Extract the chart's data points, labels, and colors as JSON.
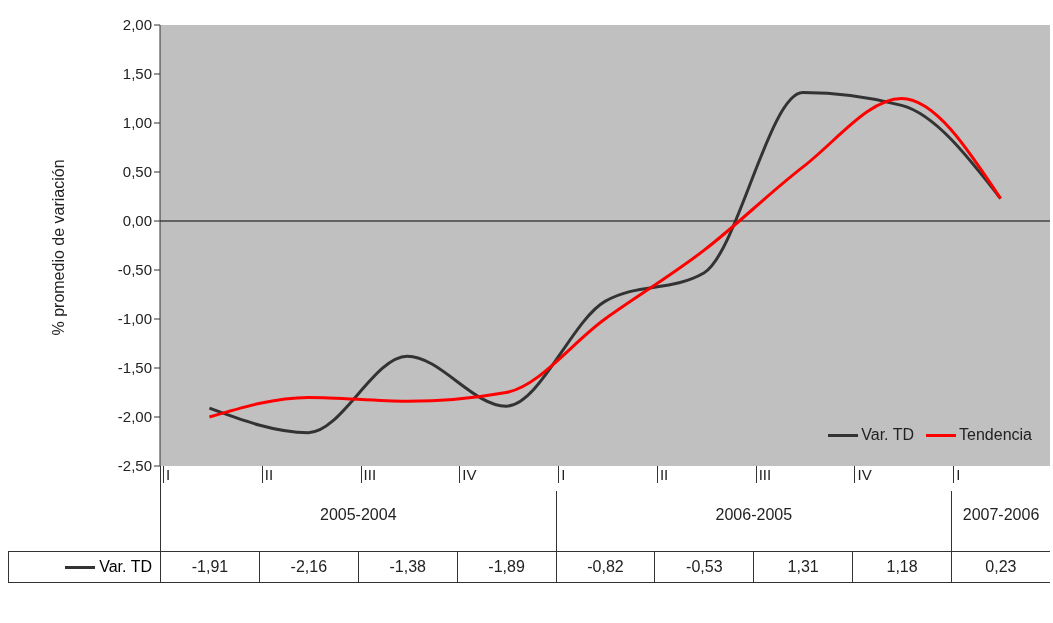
{
  "chart_data": {
    "type": "line",
    "ylabel": "% promedio de variación",
    "categories": [
      "I",
      "II",
      "III",
      "IV",
      "I",
      "II",
      "III",
      "IV",
      "I"
    ],
    "annotations": [
      "2005-2004",
      "2006-2005",
      "2007-2006"
    ],
    "series": [
      {
        "name": "Var. TD",
        "color": "#333333",
        "values": [
          -1.91,
          -2.16,
          -1.38,
          -1.89,
          -0.82,
          -0.53,
          1.31,
          1.18,
          0.23
        ],
        "value_labels": [
          "-1,91",
          "-2,16",
          "-1,38",
          "-1,89",
          "-0,82",
          "-0,53",
          "1,31",
          "1,18",
          "0,23"
        ]
      },
      {
        "name": "Tendencia",
        "color": "#ff0000",
        "values": [
          -2.0,
          -1.8,
          -1.84,
          -1.75,
          -1.0,
          -0.3,
          0.55,
          1.25,
          0.23
        ]
      }
    ],
    "ylim": [
      -2.5,
      2.0
    ],
    "yticks": [
      {
        "value": -2.5,
        "label": "-2,50"
      },
      {
        "value": -2.0,
        "label": "-2,00"
      },
      {
        "value": -1.5,
        "label": "-1,50"
      },
      {
        "value": -1.0,
        "label": "-1,00"
      },
      {
        "value": -0.5,
        "label": "-0,50"
      },
      {
        "value": 0,
        "label": "0,00"
      },
      {
        "value": 0.5,
        "label": "0,50"
      },
      {
        "value": 1.0,
        "label": "1,00"
      },
      {
        "value": 1.5,
        "label": "1,50"
      },
      {
        "value": 2.0,
        "label": "2,00"
      }
    ],
    "ref_lines": [
      {
        "axis": "y",
        "value": 0,
        "color": "#444444"
      }
    ],
    "grid": false,
    "legend": "bottom right",
    "line_style": "solid",
    "marker": "none"
  }
}
